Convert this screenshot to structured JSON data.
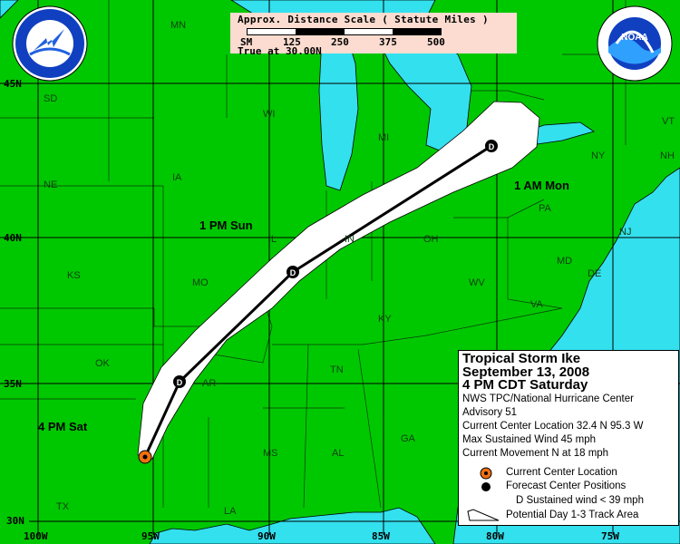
{
  "scale": {
    "title": "Approx. Distance Scale ( Statute Miles )",
    "ticks": [
      "SM",
      "125",
      "250",
      "375",
      "500"
    ],
    "note": "True at 30.00N"
  },
  "legend": {
    "storm": "Tropical Storm Ike",
    "date": "September 13, 2008",
    "time": "4 PM CDT Saturday",
    "agency": "NWS TPC/National Hurricane Center",
    "advisory": "Advisory 51",
    "location": "Current Center Location 32.4 N  95.3 W",
    "wind": "Max Sustained Wind  45 mph",
    "movement": "Current Movement N at  18 mph",
    "key_current": "Current Center Location",
    "key_forecast": "Forecast Center Positions",
    "key_d": "D  Sustained wind < 39 mph",
    "key_cone": "Potential Day 1-3 Track Area"
  },
  "track_labels": {
    "current": "4 PM Sat",
    "sun": "1 PM Sun",
    "mon": "1 AM Mon"
  },
  "marker_letter": "D",
  "axes": {
    "lat": [
      "45N",
      "40N",
      "35N",
      "30N"
    ],
    "lon": [
      "100W",
      "95W",
      "90W",
      "85W",
      "80W",
      "75W"
    ]
  },
  "states": [
    "MN",
    "SD",
    "WI",
    "MI",
    "NE",
    "IA",
    "KS",
    "MO",
    "IL",
    "IN",
    "OH",
    "PA",
    "NY",
    "VT",
    "NH",
    "NJ",
    "MD",
    "DE",
    "WV",
    "VA",
    "KY",
    "TN",
    "OK",
    "AR",
    "MS",
    "AL",
    "GA",
    "LA",
    "TX"
  ],
  "colors": {
    "land": "#00c800",
    "water": "#33e0ee",
    "cone": "#ffffff",
    "current_marker": "#f07010"
  },
  "logos": {
    "nws": "NATIONAL WEATHER SERVICE",
    "noaa": "NOAA"
  }
}
